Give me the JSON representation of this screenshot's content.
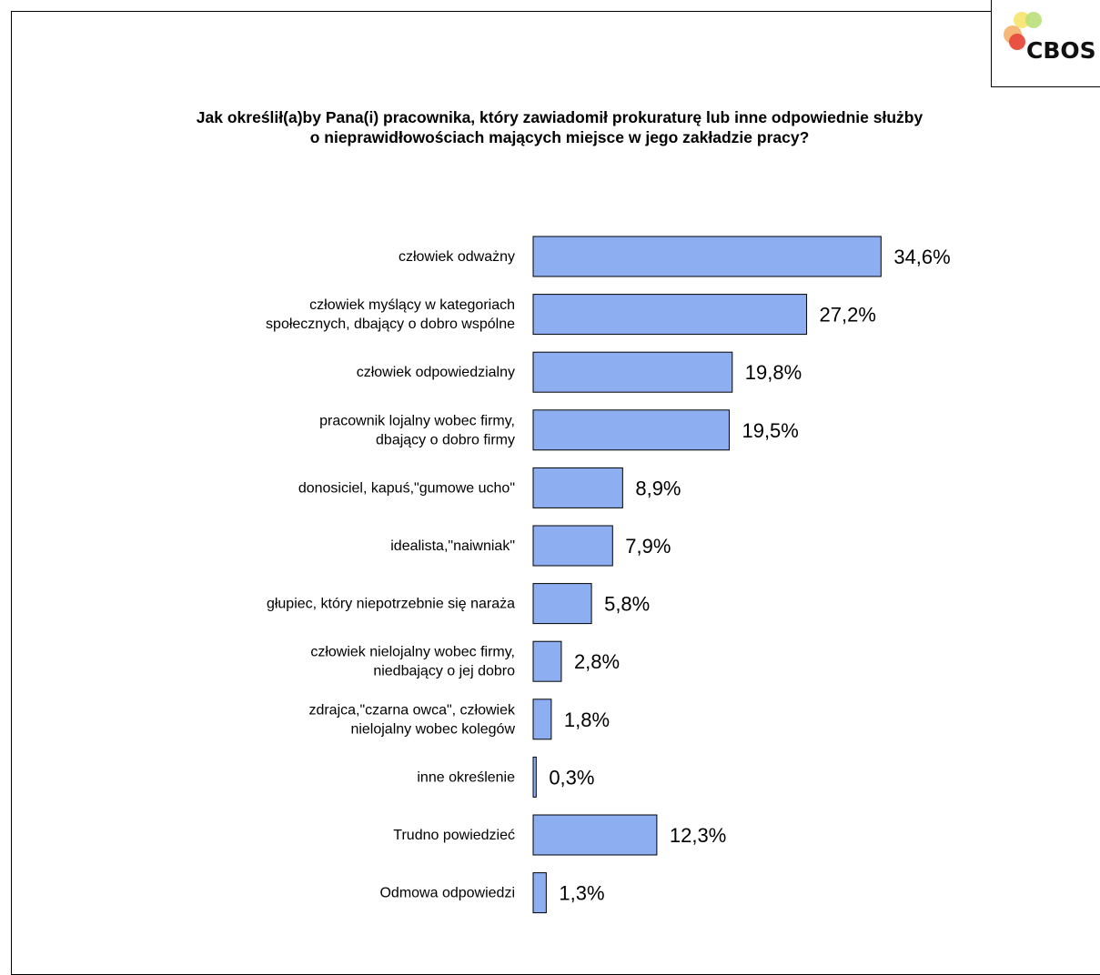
{
  "logo": {
    "text": "CBOS"
  },
  "title_lines": [
    "Jak określił(a)by Pana(i) pracownika, który zawiadomił prokuraturę lub inne odpowiednie służby",
    "o nieprawidłowościach mających miejsce w jego zakładzie pracy?"
  ],
  "colors": {
    "bar": "#8eaef2",
    "bar_stroke": "#000000"
  },
  "chart_data": {
    "type": "bar",
    "orientation": "horizontal",
    "title": "Jak określił(a)by Pana(i) pracownika, który zawiadomił prokuraturę lub inne odpowiednie służby o nieprawidłowościach mających miejsce w jego zakładzie pracy?",
    "categories": [
      [
        "człowiek odważny"
      ],
      [
        "człowiek myślący w kategoriach",
        "społecznych, dbający o dobro wspólne"
      ],
      [
        "człowiek odpowiedzialny"
      ],
      [
        "pracownik lojalny wobec firmy,",
        "dbający o dobro firmy"
      ],
      [
        "donosiciel, kapuś,\"gumowe ucho\""
      ],
      [
        "idealista,\"naiwniak\""
      ],
      [
        "głupiec, który niepotrzebnie się naraża"
      ],
      [
        "człowiek nielojalny wobec firmy,",
        "niedbający o jej dobro"
      ],
      [
        "zdrajca,\"czarna owca\", człowiek",
        "nielojalny wobec kolegów"
      ],
      [
        "inne określenie"
      ],
      [
        "Trudno powiedzieć"
      ],
      [
        "Odmowa odpowiedzi"
      ]
    ],
    "values": [
      34.6,
      27.2,
      19.8,
      19.5,
      8.9,
      7.9,
      5.8,
      2.8,
      1.8,
      0.3,
      12.3,
      1.3
    ],
    "value_labels": [
      "34,6%",
      "27,2%",
      "19,8%",
      "19,5%",
      "8,9%",
      "7,9%",
      "5,8%",
      "2,8%",
      "1,8%",
      "0,3%",
      "12,3%",
      "1,3%"
    ],
    "unit": "%",
    "grid": false,
    "legend": "none"
  }
}
